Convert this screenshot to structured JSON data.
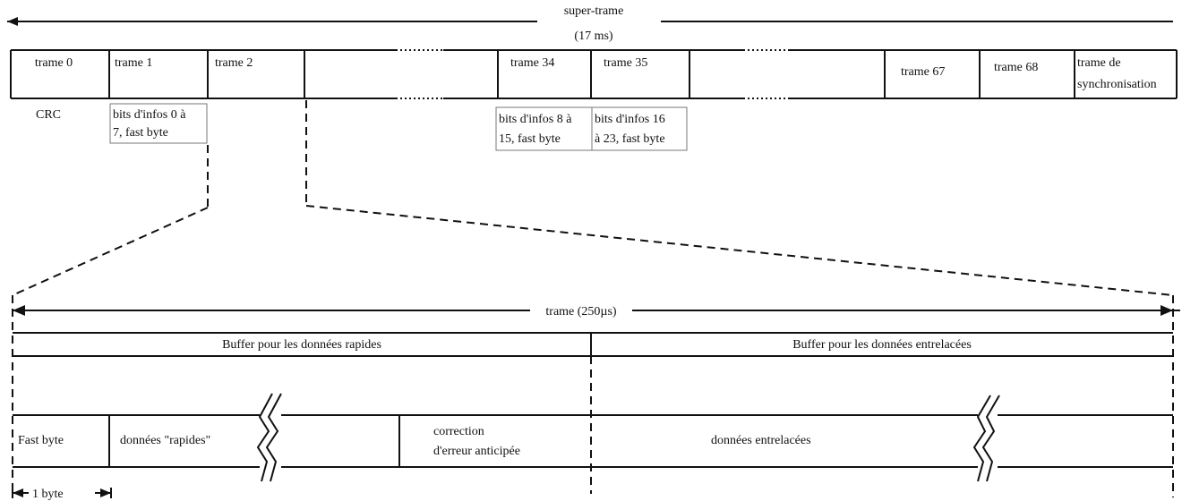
{
  "superframe": {
    "label_line1": "super-trame",
    "label_line2": "(17 ms)"
  },
  "frames": {
    "trame_0": "trame 0",
    "trame_1": "trame 1",
    "trame_2": "trame 2",
    "trame_34": "trame 34",
    "trame_35": "trame 35",
    "trame_67": "trame 67",
    "trame_68": "trame 68",
    "sync_line1": "trame de",
    "sync_line2": "synchronisation"
  },
  "frame_notes": {
    "crc": "CRC",
    "trame1_line1": "bits d'infos 0 à",
    "trame1_line2": "7, fast byte",
    "trame34_line1": "bits d'infos 8 à",
    "trame34_line2": "15, fast byte",
    "trame35_line1": "bits d'infos 16",
    "trame35_line2": "à 23, fast byte"
  },
  "frame_detail": {
    "label": "trame (250µs)",
    "buffer_fast": "Buffer pour les données rapides",
    "buffer_interleaved": "Buffer pour les données entrelacées",
    "fast_byte": "Fast byte",
    "fast_data": "données \"rapides\"",
    "fec_line1": "correction",
    "fec_line2": "d'erreur anticipée",
    "interleaved_data": "données entrelacées",
    "byte_size": "1 byte"
  }
}
